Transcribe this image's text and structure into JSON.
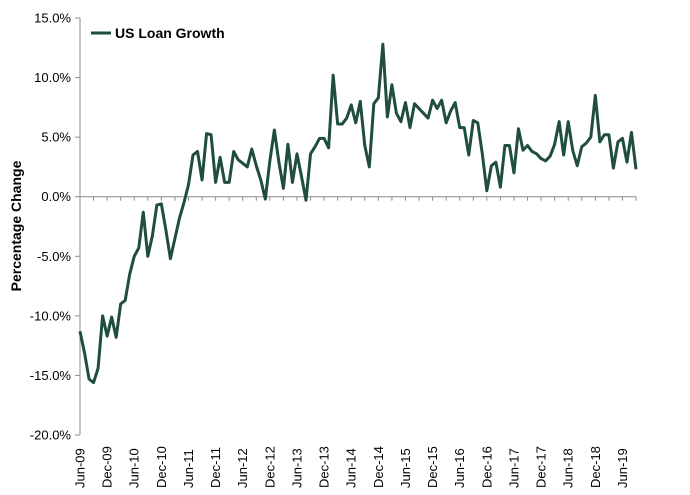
{
  "chart_data": {
    "type": "line",
    "title": "",
    "xlabel": "",
    "ylabel": "Percentage Change",
    "ylim": [
      -20,
      15
    ],
    "yticks": [
      15,
      10,
      5,
      0,
      -5,
      -10,
      -15,
      -20
    ],
    "ytick_labels": [
      "15.0%",
      "10.0%",
      "5.0%",
      "0.0%",
      "-5.0%",
      "-10.0%",
      "-15.0%",
      "-20.0%"
    ],
    "xtick_labels": [
      "Jun-09",
      "Dec-09",
      "Jun-10",
      "Dec-10",
      "Jun-11",
      "Dec-11",
      "Jun-12",
      "Dec-12",
      "Jun-13",
      "Dec-13",
      "Jun-14",
      "Dec-14",
      "Jun-15",
      "Dec-15",
      "Jun-16",
      "Dec-16",
      "Jun-17",
      "Dec-17",
      "Jun-18",
      "Dec-18",
      "Jun-19"
    ],
    "grid": false,
    "legend_position": "top-left",
    "series": [
      {
        "name": "US Loan Growth",
        "color": "#1f4e3d",
        "start": "Jun-09",
        "frequency": "monthly",
        "values": [
          -11.3,
          -13.1,
          -15.3,
          -15.6,
          -14.4,
          -10.0,
          -11.7,
          -10.1,
          -11.8,
          -9.0,
          -8.7,
          -6.5,
          -5.0,
          -4.3,
          -1.3,
          -5.0,
          -3.3,
          -0.7,
          -0.6,
          -2.8,
          -5.2,
          -3.5,
          -1.8,
          -0.5,
          1.0,
          3.5,
          3.8,
          1.4,
          5.3,
          5.2,
          1.2,
          3.3,
          1.2,
          1.2,
          3.8,
          3.1,
          2.8,
          2.5,
          4.0,
          2.6,
          1.4,
          -0.2,
          3.0,
          5.6,
          2.9,
          0.7,
          4.4,
          1.2,
          3.6,
          1.7,
          -0.3,
          3.6,
          4.2,
          4.9,
          4.9,
          4.1,
          10.2,
          6.1,
          6.1,
          6.6,
          7.7,
          6.2,
          8.0,
          4.3,
          2.5,
          7.8,
          8.3,
          12.8,
          6.7,
          9.4,
          7.0,
          6.3,
          7.9,
          5.8,
          7.8,
          7.4,
          7.0,
          6.6,
          8.1,
          7.4,
          8.1,
          6.2,
          7.2,
          7.9,
          5.8,
          5.8,
          3.5,
          6.4,
          6.2,
          3.6,
          0.5,
          2.6,
          2.9,
          0.8,
          4.3,
          4.3,
          2.0,
          5.7,
          3.9,
          4.3,
          3.8,
          3.6,
          3.2,
          3.0,
          3.4,
          4.4,
          6.3,
          3.5,
          6.3,
          3.9,
          2.6,
          4.2,
          4.5,
          5.0,
          8.5,
          4.6,
          5.2,
          5.2,
          2.4,
          4.6,
          4.9,
          2.9,
          5.4,
          2.3
        ]
      }
    ]
  }
}
